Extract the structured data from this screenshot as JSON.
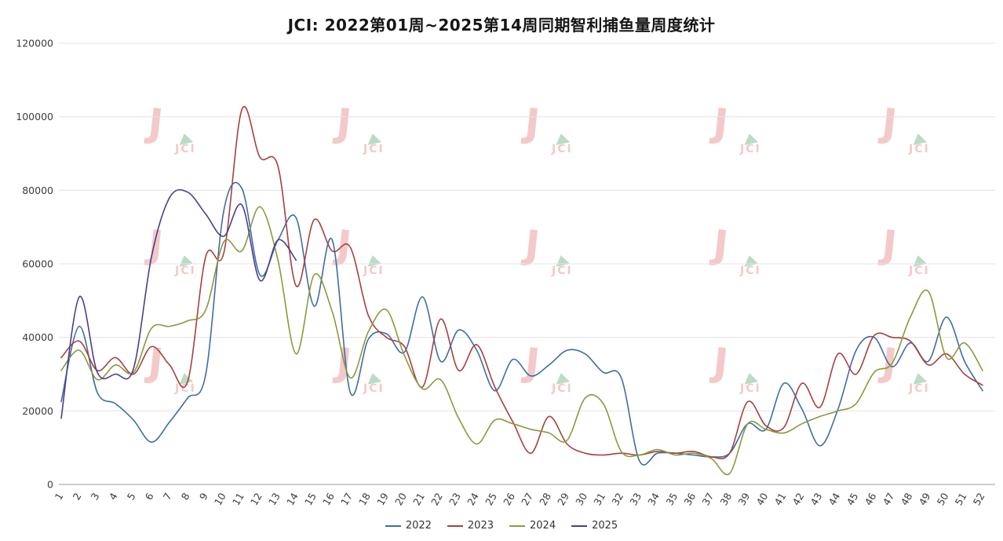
{
  "title": "JCI: 2022第01周~2025第14周同期智利捕鱼量周度统计",
  "watermark": {
    "glyph": "J",
    "label": "JCI",
    "pink": "#f4c9c9",
    "green": "#b9dcc6"
  },
  "colors": {
    "grid": "#e4e4e4",
    "axis": "#9e9e9e",
    "tick_text": "#3c3c3c",
    "series_2022": "#3e6da3",
    "series_2023": "#a6403f",
    "series_2024": "#8a9a3b",
    "series_2025": "#4b3e8c"
  },
  "chart_data": {
    "type": "line",
    "title": "JCI: 2022第01周~2025第14周同期智利捕鱼量周度统计",
    "xlabel": "",
    "ylabel": "",
    "ylim": [
      0,
      120000
    ],
    "y_ticks": [
      0,
      20000,
      40000,
      60000,
      80000,
      100000,
      120000
    ],
    "x_ticks": [
      1,
      2,
      3,
      4,
      5,
      6,
      7,
      8,
      9,
      10,
      11,
      12,
      13,
      14,
      15,
      16,
      17,
      18,
      19,
      20,
      21,
      22,
      23,
      24,
      25,
      26,
      27,
      28,
      29,
      30,
      31,
      32,
      33,
      34,
      35,
      36,
      37,
      38,
      39,
      40,
      41,
      42,
      43,
      44,
      45,
      46,
      47,
      48,
      49,
      50,
      51,
      52
    ],
    "grid": true,
    "legend_position": "bottom",
    "series": [
      {
        "name": "2022",
        "color": "#3e6da3",
        "values": [
          22500,
          43000,
          25000,
          22000,
          17500,
          11500,
          17000,
          23500,
          30000,
          74500,
          80500,
          57000,
          66500,
          72500,
          48500,
          66500,
          25000,
          39500,
          41000,
          36000,
          51000,
          33500,
          42000,
          36500,
          25500,
          34000,
          29500,
          32500,
          36500,
          35500,
          30500,
          29000,
          6500,
          8500,
          8500,
          8000,
          7500,
          8500,
          16500,
          15000,
          27500,
          20500,
          10500,
          20500,
          36500,
          40000,
          32000,
          38500,
          33500,
          45500,
          33500,
          25500
        ]
      },
      {
        "name": "2023",
        "color": "#a6403f",
        "values": [
          34500,
          39000,
          31000,
          34500,
          30000,
          37500,
          32500,
          28000,
          62000,
          63000,
          102000,
          89000,
          86500,
          54000,
          72000,
          63500,
          64500,
          46000,
          40000,
          37500,
          26500,
          45000,
          31000,
          38000,
          26500,
          17000,
          8500,
          18500,
          11000,
          8500,
          8000,
          8500,
          8000,
          9000,
          8500,
          9000,
          7500,
          8500,
          22500,
          16000,
          15500,
          27500,
          21000,
          35500,
          30000,
          40500,
          40000,
          39000,
          32500,
          35500,
          30000,
          27000
        ]
      },
      {
        "name": "2024",
        "color": "#8a9a3b",
        "values": [
          31000,
          36500,
          28500,
          32500,
          30500,
          42500,
          43000,
          44500,
          47500,
          66000,
          63500,
          75500,
          61000,
          35500,
          57000,
          47000,
          29000,
          41500,
          47500,
          35000,
          26000,
          28500,
          18000,
          11000,
          17500,
          16500,
          15000,
          14000,
          12000,
          23500,
          22000,
          9000,
          8000,
          9500,
          8000,
          8500,
          7000,
          3000,
          16500,
          15000,
          14000,
          16500,
          18500,
          20000,
          22000,
          30500,
          33000,
          45500,
          52500,
          34500,
          38500,
          31000
        ]
      },
      {
        "name": "2025",
        "color": "#4b3e8c",
        "values": [
          18000,
          51000,
          30500,
          30000,
          31500,
          62000,
          78000,
          79500,
          73500,
          67500,
          76000,
          55500,
          66500,
          61000
        ]
      }
    ]
  }
}
